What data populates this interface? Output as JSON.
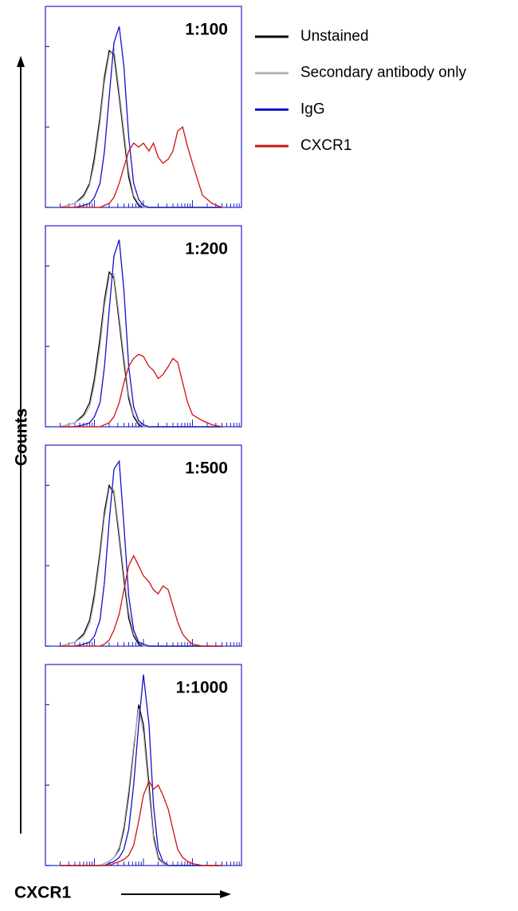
{
  "ylabel": "Counts",
  "xlabel": "CXCR1",
  "legend": [
    {
      "name": "Unstained",
      "color": "#000000"
    },
    {
      "name": "Secondary antibody only",
      "color": "#b4b4b4"
    },
    {
      "name": "IgG",
      "color": "#1010d0"
    },
    {
      "name": "CXCR1",
      "color": "#d01010"
    }
  ],
  "chart_data": [
    {
      "type": "line",
      "title": "1:100",
      "xscale": "log",
      "xlim": [
        1,
        10000
      ],
      "ylim": [
        0,
        100
      ],
      "yticks": [
        0,
        40,
        80
      ],
      "xticks": [
        1,
        2,
        3,
        4,
        5,
        6,
        7,
        8,
        9,
        10,
        20,
        30,
        40,
        50,
        60,
        70,
        80,
        90,
        100,
        200,
        300,
        400,
        500,
        600,
        700,
        800,
        900,
        1000,
        2000,
        3000,
        4000,
        5000,
        6000,
        7000,
        8000,
        9000,
        10000
      ],
      "x": [
        2,
        4,
        6,
        8,
        10,
        13,
        16,
        20,
        25,
        32,
        40,
        50,
        63,
        80,
        100,
        130,
        160,
        200,
        250,
        320,
        400,
        500,
        630,
        800,
        1000,
        1600,
        2500,
        4000
      ],
      "series": [
        {
          "values": [
            0,
            2,
            6,
            12,
            25,
            45,
            65,
            78,
            76,
            55,
            35,
            15,
            5,
            1,
            0,
            0,
            0,
            0,
            0,
            0,
            0,
            0,
            0,
            0,
            0,
            0,
            0,
            0
          ]
        },
        {
          "values": [
            0,
            2,
            5,
            11,
            22,
            42,
            62,
            76,
            79,
            58,
            38,
            18,
            6,
            2,
            0,
            0,
            0,
            0,
            0,
            0,
            0,
            0,
            0,
            0,
            0,
            0,
            0,
            0
          ]
        },
        {
          "values": [
            0,
            0,
            1,
            2,
            5,
            12,
            28,
            55,
            82,
            90,
            70,
            35,
            12,
            4,
            1,
            0,
            0,
            0,
            0,
            0,
            0,
            0,
            0,
            0,
            0,
            0,
            0,
            0
          ]
        },
        {
          "values": [
            0,
            0,
            0,
            0,
            0,
            0,
            1,
            2,
            5,
            12,
            20,
            28,
            32,
            30,
            32,
            28,
            32,
            25,
            22,
            24,
            28,
            38,
            40,
            30,
            22,
            6,
            2,
            0
          ]
        }
      ]
    },
    {
      "type": "line",
      "title": "1:200",
      "xscale": "log",
      "xlim": [
        1,
        10000
      ],
      "ylim": [
        0,
        100
      ],
      "yticks": [
        0,
        40,
        80
      ],
      "xticks": [
        1,
        2,
        3,
        4,
        5,
        6,
        7,
        8,
        9,
        10,
        20,
        30,
        40,
        50,
        60,
        70,
        80,
        90,
        100,
        200,
        300,
        400,
        500,
        600,
        700,
        800,
        900,
        1000,
        2000,
        3000,
        4000,
        5000,
        6000,
        7000,
        8000,
        9000,
        10000
      ],
      "x": [
        2,
        4,
        6,
        8,
        10,
        13,
        16,
        20,
        25,
        32,
        40,
        50,
        63,
        80,
        100,
        130,
        160,
        200,
        250,
        320,
        400,
        500,
        630,
        800,
        1000,
        1600,
        2500,
        4000
      ],
      "series": [
        {
          "values": [
            0,
            2,
            6,
            12,
            24,
            44,
            63,
            77,
            74,
            52,
            32,
            14,
            5,
            1,
            0,
            0,
            0,
            0,
            0,
            0,
            0,
            0,
            0,
            0,
            0,
            0,
            0,
            0
          ]
        },
        {
          "values": [
            0,
            2,
            5,
            10,
            21,
            40,
            60,
            74,
            76,
            55,
            35,
            16,
            6,
            2,
            0,
            0,
            0,
            0,
            0,
            0,
            0,
            0,
            0,
            0,
            0,
            0,
            0,
            0
          ]
        },
        {
          "values": [
            0,
            0,
            1,
            2,
            5,
            12,
            30,
            58,
            85,
            93,
            68,
            30,
            10,
            3,
            1,
            0,
            0,
            0,
            0,
            0,
            0,
            0,
            0,
            0,
            0,
            0,
            0,
            0
          ]
        },
        {
          "values": [
            0,
            0,
            0,
            0,
            0,
            0,
            1,
            2,
            5,
            12,
            22,
            30,
            34,
            36,
            35,
            30,
            28,
            24,
            26,
            30,
            34,
            32,
            22,
            12,
            6,
            3,
            1,
            0
          ]
        }
      ]
    },
    {
      "type": "line",
      "title": "1:500",
      "xscale": "log",
      "xlim": [
        1,
        10000
      ],
      "ylim": [
        0,
        100
      ],
      "yticks": [
        0,
        40,
        80
      ],
      "xticks": [
        1,
        2,
        3,
        4,
        5,
        6,
        7,
        8,
        9,
        10,
        20,
        30,
        40,
        50,
        60,
        70,
        80,
        90,
        100,
        200,
        300,
        400,
        500,
        600,
        700,
        800,
        900,
        1000,
        2000,
        3000,
        4000,
        5000,
        6000,
        7000,
        8000,
        9000,
        10000
      ],
      "x": [
        2,
        4,
        6,
        8,
        10,
        13,
        16,
        20,
        25,
        32,
        40,
        50,
        63,
        80,
        100,
        130,
        160,
        200,
        250,
        320,
        400,
        500,
        630,
        800,
        1000,
        1600,
        2500,
        4000
      ],
      "series": [
        {
          "values": [
            0,
            2,
            6,
            13,
            26,
            47,
            67,
            80,
            76,
            54,
            33,
            14,
            5,
            1,
            0,
            0,
            0,
            0,
            0,
            0,
            0,
            0,
            0,
            0,
            0,
            0,
            0,
            0
          ]
        },
        {
          "values": [
            0,
            2,
            5,
            11,
            23,
            44,
            64,
            78,
            78,
            57,
            36,
            17,
            6,
            2,
            0,
            0,
            0,
            0,
            0,
            0,
            0,
            0,
            0,
            0,
            0,
            0,
            0,
            0
          ]
        },
        {
          "values": [
            0,
            0,
            1,
            2,
            5,
            13,
            32,
            62,
            88,
            92,
            60,
            25,
            8,
            2,
            1,
            0,
            0,
            0,
            0,
            0,
            0,
            0,
            0,
            0,
            0,
            0,
            0,
            0
          ]
        },
        {
          "values": [
            0,
            0,
            0,
            0,
            0,
            0,
            1,
            3,
            8,
            16,
            28,
            40,
            45,
            40,
            35,
            32,
            28,
            26,
            30,
            28,
            20,
            12,
            6,
            3,
            1,
            0,
            0,
            0
          ]
        }
      ]
    },
    {
      "type": "line",
      "title": "1:1000",
      "xscale": "log",
      "xlim": [
        1,
        10000
      ],
      "ylim": [
        0,
        100
      ],
      "yticks": [
        0,
        40,
        80
      ],
      "xticks": [
        1,
        2,
        3,
        4,
        5,
        6,
        7,
        8,
        9,
        10,
        20,
        30,
        40,
        50,
        60,
        70,
        80,
        90,
        100,
        200,
        300,
        400,
        500,
        600,
        700,
        800,
        900,
        1000,
        2000,
        3000,
        4000,
        5000,
        6000,
        7000,
        8000,
        9000,
        10000
      ],
      "x": [
        2,
        4,
        6,
        8,
        10,
        13,
        16,
        20,
        25,
        32,
        40,
        50,
        63,
        80,
        100,
        130,
        160,
        200,
        250,
        320,
        400,
        500,
        630,
        800,
        1000,
        1600,
        2500,
        4000
      ],
      "series": [
        {
          "values": [
            0,
            0,
            0,
            0,
            0,
            0,
            1,
            2,
            4,
            8,
            18,
            35,
            58,
            80,
            70,
            40,
            15,
            4,
            1,
            0,
            0,
            0,
            0,
            0,
            0,
            0,
            0,
            0
          ]
        },
        {
          "values": [
            0,
            0,
            0,
            0,
            0,
            0,
            1,
            2,
            4,
            9,
            20,
            38,
            60,
            78,
            66,
            36,
            13,
            3,
            1,
            0,
            0,
            0,
            0,
            0,
            0,
            0,
            0,
            0
          ]
        },
        {
          "values": [
            0,
            0,
            0,
            0,
            0,
            0,
            0,
            1,
            2,
            4,
            8,
            18,
            40,
            70,
            95,
            70,
            30,
            8,
            2,
            0,
            0,
            0,
            0,
            0,
            0,
            0,
            0,
            0
          ]
        },
        {
          "values": [
            0,
            0,
            0,
            0,
            0,
            0,
            0,
            0,
            1,
            2,
            3,
            5,
            10,
            22,
            35,
            42,
            38,
            40,
            35,
            28,
            18,
            8,
            4,
            2,
            1,
            0,
            0,
            0
          ]
        }
      ]
    }
  ]
}
